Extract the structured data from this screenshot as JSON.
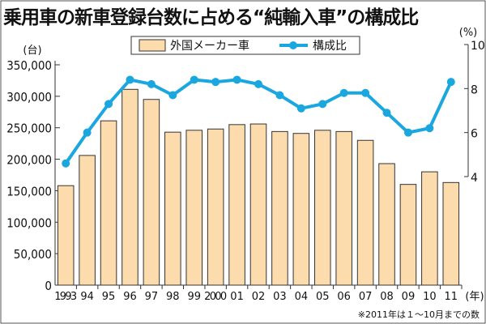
{
  "chart_data": {
    "type": "bar+line",
    "title": "乗用車の新車登録台数に占める“純輸入車”の構成比",
    "categories": [
      "1993",
      "94",
      "95",
      "96",
      "97",
      "98",
      "99",
      "2000",
      "01",
      "02",
      "03",
      "04",
      "05",
      "06",
      "07",
      "08",
      "09",
      "10",
      "11"
    ],
    "xlabel": "(年)",
    "ylabel_left": "(台)",
    "ylabel_right": "(%)",
    "yticks_left": [
      "0",
      "50,000",
      "100,000",
      "150,000",
      "200,000",
      "250,000",
      "300,000",
      "350,000"
    ],
    "yticks_right": [
      "4",
      "6",
      "8",
      "10"
    ],
    "ylim_left": [
      0,
      350000
    ],
    "ylim_right": [
      4,
      10
    ],
    "series": [
      {
        "name": "外国メーカー車",
        "type": "bar",
        "axis": "left",
        "color": "#fcdcad",
        "values": [
          158000,
          206000,
          261000,
          311000,
          295000,
          243000,
          246000,
          248000,
          255000,
          256000,
          244000,
          241000,
          246000,
          244000,
          230000,
          193000,
          160000,
          180000,
          163000
        ]
      },
      {
        "name": "構成比",
        "type": "line",
        "axis": "right",
        "color": "#1aa7e0",
        "values": [
          4.6,
          6.0,
          7.3,
          8.4,
          8.2,
          7.7,
          8.4,
          8.3,
          8.4,
          8.2,
          7.7,
          7.1,
          7.3,
          7.8,
          7.8,
          6.9,
          6.0,
          6.2,
          8.3
        ]
      }
    ],
    "legend": "top-center",
    "note": "※2011年は１～10月までの数"
  }
}
